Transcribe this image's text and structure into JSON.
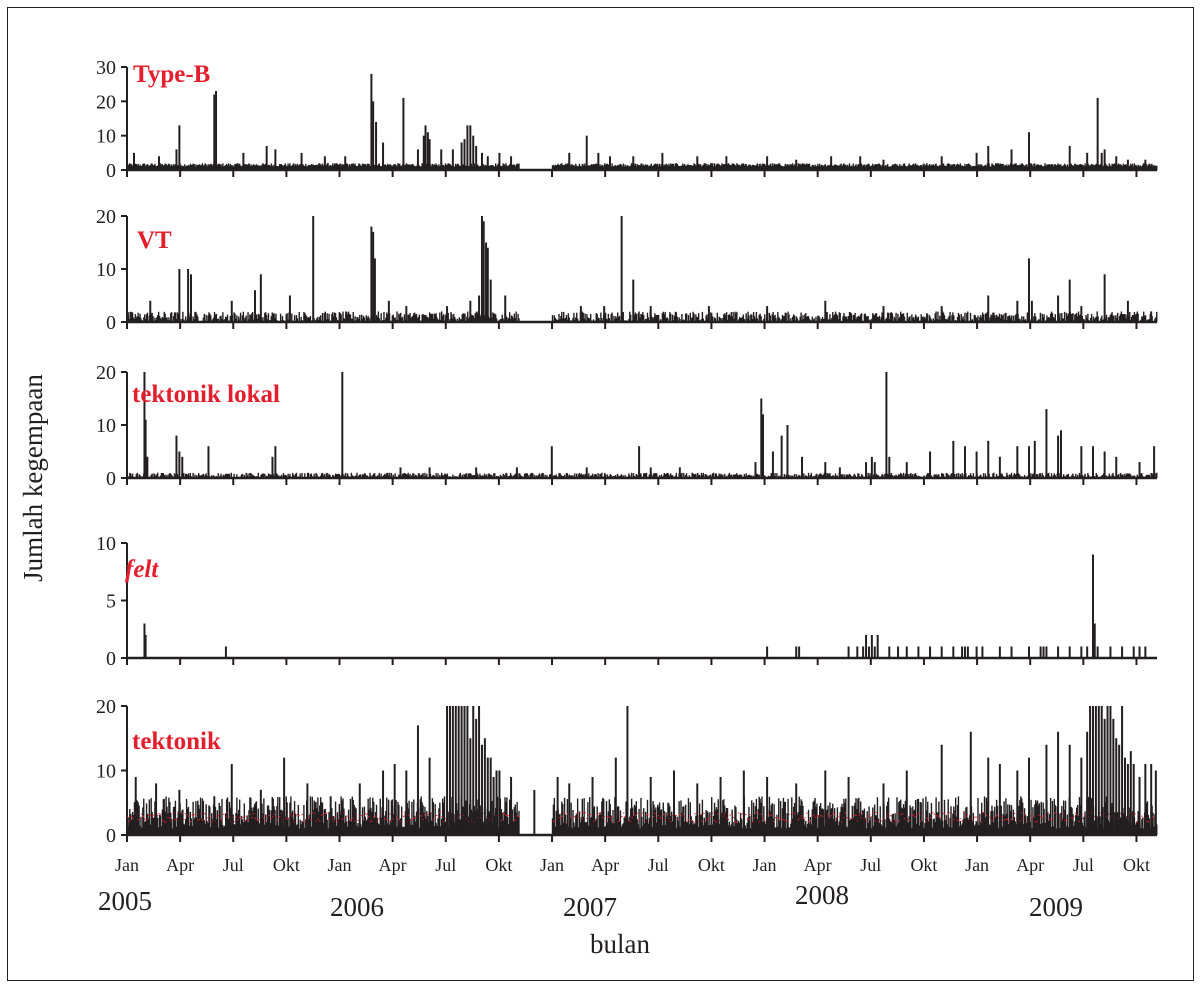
{
  "chart_data": {
    "type": "bar",
    "ylabel": "Jumlah kegempaan",
    "xlabel": "bulan",
    "colors": {
      "bar": "#231f20",
      "label": "#e31e2d",
      "accent": "#e31e2d"
    },
    "months": [
      "Jan",
      "Apr",
      "Jul",
      "Okt",
      "Jan",
      "Apr",
      "Jul",
      "Okt",
      "Jan",
      "Apr",
      "Jul",
      "Okt",
      "Jan",
      "Apr",
      "Jul",
      "Okt",
      "Jan",
      "Apr",
      "Jul",
      "Okt"
    ],
    "years": [
      "2005",
      "2006",
      "2007",
      "2008",
      "2009"
    ],
    "x_unit": "days since 2005-01-01",
    "xlim": [
      0,
      1770
    ],
    "panels": [
      {
        "name": "Type-B",
        "italic": false,
        "ylim": [
          0,
          30
        ],
        "yticks": [
          0,
          10,
          20,
          30
        ],
        "gaps": [
          [
            675,
            730
          ]
        ],
        "baseline": [
          1,
          2
        ],
        "spikes": [
          [
            12,
            5
          ],
          [
            55,
            4
          ],
          [
            85,
            6
          ],
          [
            90,
            13
          ],
          [
            150,
            22
          ],
          [
            153,
            23
          ],
          [
            200,
            5
          ],
          [
            240,
            7
          ],
          [
            255,
            6
          ],
          [
            300,
            5
          ],
          [
            340,
            4
          ],
          [
            375,
            4
          ],
          [
            420,
            28
          ],
          [
            423,
            20
          ],
          [
            428,
            14
          ],
          [
            440,
            8
          ],
          [
            475,
            21
          ],
          [
            500,
            6
          ],
          [
            510,
            10
          ],
          [
            513,
            13
          ],
          [
            517,
            11
          ],
          [
            520,
            9
          ],
          [
            540,
            6
          ],
          [
            560,
            6
          ],
          [
            575,
            8
          ],
          [
            580,
            9
          ],
          [
            585,
            13
          ],
          [
            590,
            13
          ],
          [
            595,
            10
          ],
          [
            600,
            7
          ],
          [
            610,
            5
          ],
          [
            620,
            4
          ],
          [
            640,
            5
          ],
          [
            660,
            4
          ],
          [
            760,
            5
          ],
          [
            790,
            10
          ],
          [
            810,
            5
          ],
          [
            830,
            4
          ],
          [
            870,
            4
          ],
          [
            920,
            5
          ],
          [
            980,
            4
          ],
          [
            1030,
            4
          ],
          [
            1100,
            4
          ],
          [
            1150,
            3
          ],
          [
            1210,
            4
          ],
          [
            1260,
            4
          ],
          [
            1300,
            3
          ],
          [
            1400,
            4
          ],
          [
            1460,
            5
          ],
          [
            1480,
            7
          ],
          [
            1520,
            6
          ],
          [
            1550,
            11
          ],
          [
            1620,
            7
          ],
          [
            1650,
            5
          ],
          [
            1668,
            21
          ],
          [
            1675,
            5
          ],
          [
            1680,
            6
          ],
          [
            1700,
            4
          ],
          [
            1720,
            3
          ],
          [
            1750,
            3
          ]
        ]
      },
      {
        "name": "VT",
        "italic": false,
        "ylim": [
          0,
          20
        ],
        "yticks": [
          0,
          10,
          20
        ],
        "gaps": [
          [
            675,
            730
          ]
        ],
        "baseline": [
          0,
          2
        ],
        "spikes": [
          [
            40,
            4
          ],
          [
            90,
            10
          ],
          [
            105,
            10
          ],
          [
            110,
            9
          ],
          [
            180,
            4
          ],
          [
            220,
            6
          ],
          [
            230,
            9
          ],
          [
            280,
            5
          ],
          [
            320,
            20
          ],
          [
            420,
            18
          ],
          [
            423,
            17
          ],
          [
            426,
            12
          ],
          [
            450,
            4
          ],
          [
            480,
            3
          ],
          [
            550,
            3
          ],
          [
            590,
            4
          ],
          [
            605,
            5
          ],
          [
            610,
            20
          ],
          [
            613,
            19
          ],
          [
            617,
            15
          ],
          [
            620,
            14
          ],
          [
            625,
            8
          ],
          [
            650,
            5
          ],
          [
            780,
            3
          ],
          [
            820,
            3
          ],
          [
            850,
            20
          ],
          [
            870,
            8
          ],
          [
            900,
            3
          ],
          [
            1000,
            3
          ],
          [
            1100,
            3
          ],
          [
            1200,
            4
          ],
          [
            1300,
            3
          ],
          [
            1400,
            3
          ],
          [
            1480,
            5
          ],
          [
            1530,
            4
          ],
          [
            1550,
            12
          ],
          [
            1555,
            4
          ],
          [
            1600,
            5
          ],
          [
            1620,
            8
          ],
          [
            1640,
            3
          ],
          [
            1680,
            9
          ],
          [
            1720,
            4
          ],
          [
            1760,
            2
          ]
        ]
      },
      {
        "name": "tektonik lokal",
        "italic": false,
        "ylim": [
          0,
          20
        ],
        "yticks": [
          0,
          10,
          20
        ],
        "gaps": [],
        "baseline": [
          0,
          1
        ],
        "spikes": [
          [
            30,
            20
          ],
          [
            32,
            11
          ],
          [
            35,
            4
          ],
          [
            85,
            8
          ],
          [
            90,
            5
          ],
          [
            95,
            4
          ],
          [
            140,
            6
          ],
          [
            250,
            4
          ],
          [
            255,
            6
          ],
          [
            370,
            20
          ],
          [
            470,
            2
          ],
          [
            520,
            2
          ],
          [
            600,
            2
          ],
          [
            670,
            2
          ],
          [
            730,
            6
          ],
          [
            790,
            2
          ],
          [
            880,
            6
          ],
          [
            900,
            2
          ],
          [
            950,
            2
          ],
          [
            1080,
            3
          ],
          [
            1090,
            15
          ],
          [
            1093,
            12
          ],
          [
            1110,
            5
          ],
          [
            1125,
            8
          ],
          [
            1135,
            10
          ],
          [
            1160,
            4
          ],
          [
            1200,
            3
          ],
          [
            1225,
            2
          ],
          [
            1270,
            3
          ],
          [
            1280,
            4
          ],
          [
            1285,
            3
          ],
          [
            1305,
            20
          ],
          [
            1310,
            4
          ],
          [
            1340,
            3
          ],
          [
            1380,
            5
          ],
          [
            1420,
            7
          ],
          [
            1440,
            6
          ],
          [
            1460,
            5
          ],
          [
            1480,
            7
          ],
          [
            1500,
            4
          ],
          [
            1530,
            6
          ],
          [
            1550,
            6
          ],
          [
            1560,
            7
          ],
          [
            1580,
            13
          ],
          [
            1600,
            8
          ],
          [
            1605,
            9
          ],
          [
            1640,
            6
          ],
          [
            1660,
            6
          ],
          [
            1680,
            5
          ],
          [
            1700,
            4
          ],
          [
            1740,
            3
          ],
          [
            1765,
            6
          ]
        ]
      },
      {
        "name": "felt",
        "italic": true,
        "ylim": [
          0,
          10
        ],
        "yticks": [
          0,
          5,
          10
        ],
        "gaps": [],
        "baseline": null,
        "spikes": [
          [
            30,
            3
          ],
          [
            32,
            2
          ],
          [
            170,
            1
          ],
          [
            1100,
            1
          ],
          [
            1150,
            1
          ],
          [
            1155,
            1
          ],
          [
            1240,
            1
          ],
          [
            1255,
            1
          ],
          [
            1265,
            1
          ],
          [
            1270,
            2
          ],
          [
            1275,
            1
          ],
          [
            1280,
            2
          ],
          [
            1285,
            1
          ],
          [
            1290,
            2
          ],
          [
            1310,
            1
          ],
          [
            1325,
            1
          ],
          [
            1340,
            1
          ],
          [
            1360,
            1
          ],
          [
            1380,
            1
          ],
          [
            1400,
            1
          ],
          [
            1420,
            1
          ],
          [
            1435,
            1
          ],
          [
            1440,
            1
          ],
          [
            1445,
            1
          ],
          [
            1460,
            1
          ],
          [
            1470,
            1
          ],
          [
            1500,
            1
          ],
          [
            1520,
            1
          ],
          [
            1550,
            1
          ],
          [
            1570,
            1
          ],
          [
            1575,
            1
          ],
          [
            1580,
            1
          ],
          [
            1600,
            1
          ],
          [
            1620,
            1
          ],
          [
            1640,
            1
          ],
          [
            1650,
            1
          ],
          [
            1660,
            9
          ],
          [
            1663,
            3
          ],
          [
            1668,
            1
          ],
          [
            1690,
            1
          ],
          [
            1710,
            1
          ],
          [
            1730,
            1
          ],
          [
            1740,
            1
          ],
          [
            1750,
            1
          ]
        ]
      },
      {
        "name": "tektonik",
        "italic": false,
        "ylim": [
          0,
          20
        ],
        "yticks": [
          0,
          10,
          20
        ],
        "gaps": [
          [
            675,
            730
          ]
        ],
        "baseline": [
          1,
          6
        ],
        "spikes": [
          [
            15,
            9
          ],
          [
            50,
            8
          ],
          [
            90,
            7
          ],
          [
            150,
            6
          ],
          [
            180,
            11
          ],
          [
            230,
            7
          ],
          [
            270,
            12
          ],
          [
            310,
            8
          ],
          [
            350,
            6
          ],
          [
            400,
            8
          ],
          [
            440,
            10
          ],
          [
            460,
            11
          ],
          [
            480,
            10
          ],
          [
            500,
            17
          ],
          [
            520,
            12
          ],
          [
            550,
            20
          ],
          [
            555,
            20
          ],
          [
            560,
            20
          ],
          [
            565,
            20
          ],
          [
            570,
            20
          ],
          [
            575,
            20
          ],
          [
            580,
            20
          ],
          [
            585,
            20
          ],
          [
            590,
            15
          ],
          [
            595,
            20
          ],
          [
            600,
            18
          ],
          [
            605,
            20
          ],
          [
            610,
            14
          ],
          [
            615,
            15
          ],
          [
            620,
            12
          ],
          [
            625,
            12
          ],
          [
            630,
            9
          ],
          [
            635,
            10
          ],
          [
            640,
            10
          ],
          [
            660,
            9
          ],
          [
            700,
            7
          ],
          [
            740,
            9
          ],
          [
            760,
            8
          ],
          [
            800,
            9
          ],
          [
            840,
            12
          ],
          [
            860,
            20
          ],
          [
            900,
            9
          ],
          [
            940,
            10
          ],
          [
            980,
            8
          ],
          [
            1020,
            9
          ],
          [
            1060,
            10
          ],
          [
            1100,
            9
          ],
          [
            1150,
            8
          ],
          [
            1200,
            10
          ],
          [
            1240,
            9
          ],
          [
            1300,
            8
          ],
          [
            1340,
            10
          ],
          [
            1400,
            14
          ],
          [
            1450,
            16
          ],
          [
            1480,
            12
          ],
          [
            1500,
            11
          ],
          [
            1530,
            10
          ],
          [
            1550,
            12
          ],
          [
            1580,
            14
          ],
          [
            1600,
            16
          ],
          [
            1620,
            14
          ],
          [
            1640,
            12
          ],
          [
            1650,
            16
          ],
          [
            1655,
            20
          ],
          [
            1660,
            20
          ],
          [
            1665,
            20
          ],
          [
            1670,
            20
          ],
          [
            1675,
            20
          ],
          [
            1680,
            18
          ],
          [
            1685,
            20
          ],
          [
            1690,
            20
          ],
          [
            1695,
            18
          ],
          [
            1700,
            15
          ],
          [
            1705,
            14
          ],
          [
            1710,
            20
          ],
          [
            1715,
            12
          ],
          [
            1720,
            11
          ],
          [
            1725,
            13
          ],
          [
            1730,
            11
          ],
          [
            1740,
            9
          ],
          [
            1750,
            11
          ],
          [
            1760,
            11
          ],
          [
            1768,
            10
          ]
        ]
      }
    ]
  }
}
